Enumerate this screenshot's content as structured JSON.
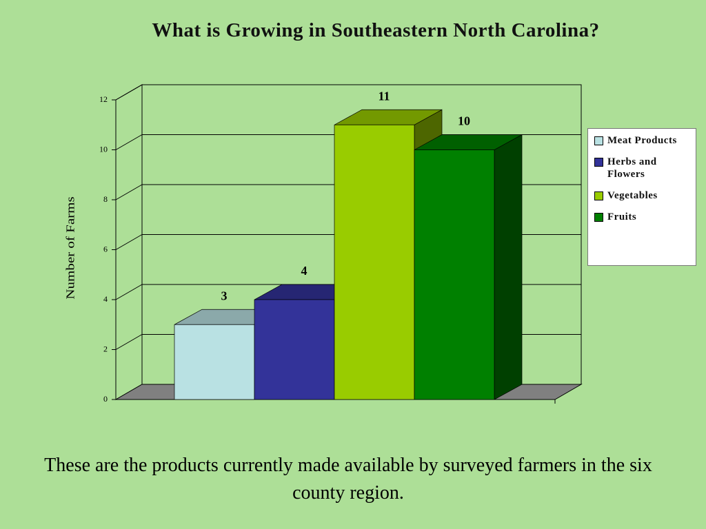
{
  "chart_data": {
    "type": "bar3d",
    "title": "What is Growing in Southeastern North Carolina?",
    "y_label": "Number of Farms",
    "series": [
      {
        "name": "Meat Products",
        "color": "#b9e1e3",
        "values": [
          3
        ]
      },
      {
        "name": "Herbs and Flowers",
        "color": "#333399",
        "values": [
          4
        ]
      },
      {
        "name": "Vegetables",
        "color": "#99cc00",
        "values": [
          11
        ]
      },
      {
        "name": "Fruits",
        "color": "#008000",
        "values": [
          10
        ]
      }
    ],
    "ylim": [
      0,
      12
    ],
    "yticks": [
      0,
      2,
      4,
      6,
      8,
      10,
      12
    ],
    "grid": true,
    "legend": "right"
  },
  "caption": "These are the products currently  made available by surveyed farmers in the six county region."
}
